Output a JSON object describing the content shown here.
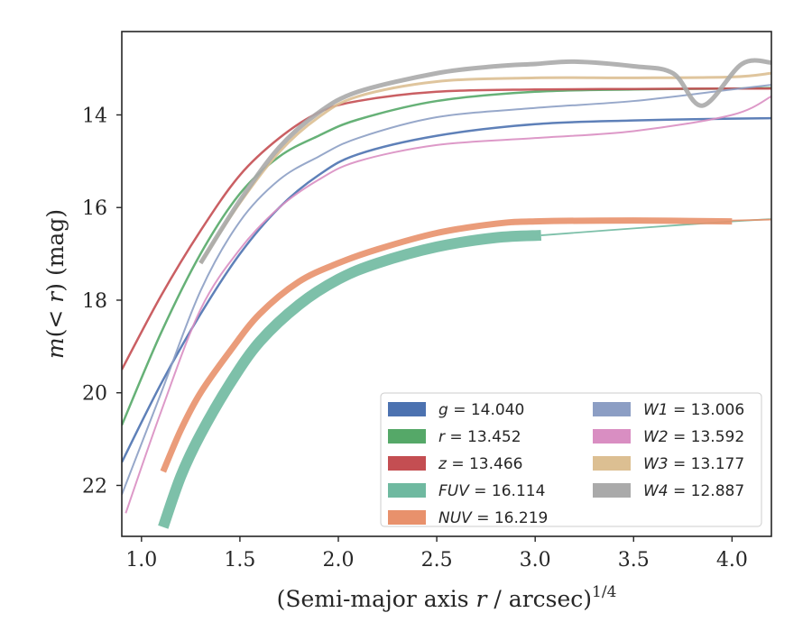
{
  "chart_data": {
    "type": "line",
    "xlabel": "(Semi-major axis r / arcsec)",
    "xlabel_italic": "r",
    "xlabel_exponent": "1/4",
    "ylabel": "m(< r) (mag)",
    "xlim": [
      0.9,
      4.2
    ],
    "ylim": [
      23.1,
      12.2
    ],
    "y_inverted": true,
    "xticks": [
      1.0,
      1.5,
      2.0,
      2.5,
      3.0,
      3.5,
      4.0
    ],
    "xtick_labels": [
      "1.0",
      "1.5",
      "2.0",
      "2.5",
      "3.0",
      "3.5",
      "4.0"
    ],
    "yticks": [
      14,
      16,
      18,
      20,
      22
    ],
    "ytick_labels": [
      "14",
      "16",
      "18",
      "20",
      "22"
    ],
    "grid": false,
    "legend_position": "lower-right",
    "legend": [
      {
        "band": "g",
        "label": "g = 14.040",
        "color": "#4c72b0"
      },
      {
        "band": "r",
        "label": "r = 13.452",
        "color": "#55a868"
      },
      {
        "band": "z",
        "label": "z = 13.466",
        "color": "#c44e52"
      },
      {
        "band": "FUV",
        "label": "FUV = 16.114",
        "color": "#6fb9a0"
      },
      {
        "band": "NUV",
        "label": "NUV = 16.219",
        "color": "#e8916c"
      },
      {
        "band": "W1",
        "label": "W1 = 13.006",
        "color": "#8c9ec4"
      },
      {
        "band": "W2",
        "label": "W2 = 13.592",
        "color": "#d98ec2"
      },
      {
        "band": "W3",
        "label": "W3 = 13.177",
        "color": "#dcbf92"
      },
      {
        "band": "W4",
        "label": "W4 = 12.887",
        "color": "#aaaaaa"
      }
    ],
    "series": [
      {
        "band": "g",
        "color": "#4c72b0",
        "lw": 2.5,
        "x": [
          0.9,
          1.1,
          1.3,
          1.5,
          1.7,
          1.9,
          2.1,
          2.5,
          3.0,
          3.5,
          4.0,
          4.2
        ],
        "y": [
          21.5,
          19.8,
          18.3,
          17.0,
          16.0,
          15.3,
          14.85,
          14.45,
          14.2,
          14.12,
          14.08,
          14.07
        ]
      },
      {
        "band": "r",
        "color": "#55a868",
        "lw": 2.5,
        "x": [
          0.9,
          1.1,
          1.3,
          1.5,
          1.7,
          1.9,
          2.1,
          2.5,
          3.0,
          3.5,
          4.0,
          4.2
        ],
        "y": [
          20.7,
          18.7,
          17.0,
          15.7,
          14.9,
          14.45,
          14.1,
          13.7,
          13.5,
          13.45,
          13.43,
          13.42
        ]
      },
      {
        "band": "z",
        "color": "#c44e52",
        "lw": 2.5,
        "x": [
          0.9,
          1.1,
          1.3,
          1.5,
          1.7,
          1.9,
          2.1,
          2.5,
          3.0,
          3.5,
          4.0,
          4.2
        ],
        "y": [
          19.5,
          17.9,
          16.5,
          15.3,
          14.5,
          13.95,
          13.7,
          13.5,
          13.45,
          13.44,
          13.43,
          13.43
        ]
      },
      {
        "band": "W1",
        "color": "#8c9ec4",
        "lw": 2.0,
        "x": [
          0.9,
          1.1,
          1.3,
          1.5,
          1.7,
          1.9,
          2.1,
          2.5,
          3.0,
          3.5,
          4.0,
          4.2
        ],
        "y": [
          22.2,
          20.0,
          17.8,
          16.3,
          15.4,
          14.9,
          14.5,
          14.05,
          13.85,
          13.7,
          13.45,
          13.35
        ]
      },
      {
        "band": "W2",
        "color": "#d98ec2",
        "lw": 2.0,
        "x": [
          0.92,
          1.1,
          1.3,
          1.5,
          1.7,
          1.9,
          2.1,
          2.5,
          3.0,
          3.5,
          4.0,
          4.2
        ],
        "y": [
          22.6,
          20.4,
          18.2,
          16.9,
          16.0,
          15.4,
          15.0,
          14.65,
          14.5,
          14.35,
          14.0,
          13.6
        ]
      },
      {
        "band": "W3",
        "color": "#dcbf92",
        "lw": 3.0,
        "x": [
          1.3,
          1.5,
          1.7,
          1.9,
          2.1,
          2.5,
          3.0,
          3.5,
          4.0,
          4.2
        ],
        "y": [
          17.2,
          15.9,
          14.8,
          14.05,
          13.6,
          13.28,
          13.2,
          13.2,
          13.18,
          13.1
        ]
      },
      {
        "band": "W4",
        "color": "#aaaaaa",
        "lw": 5.0,
        "x": [
          1.3,
          1.5,
          1.7,
          1.9,
          2.1,
          2.5,
          2.8,
          3.0,
          3.2,
          3.5,
          3.7,
          3.85,
          4.05,
          4.2
        ],
        "y": [
          17.2,
          15.85,
          14.7,
          13.95,
          13.5,
          13.1,
          12.95,
          12.9,
          12.85,
          12.95,
          13.1,
          13.8,
          12.9,
          12.87
        ]
      },
      {
        "band": "FUV",
        "color": "#6fb9a0",
        "lw": 12.0,
        "x": [
          1.11,
          1.2,
          1.3,
          1.45,
          1.6,
          1.8,
          2.0,
          2.2,
          2.5,
          2.8,
          3.03
        ],
        "y": [
          22.9,
          21.8,
          20.9,
          19.8,
          18.9,
          18.1,
          17.55,
          17.2,
          16.85,
          16.65,
          16.6
        ]
      },
      {
        "band": "FUV-ext",
        "color": "#6fb9a0",
        "lw": 1.8,
        "x": [
          3.03,
          3.5,
          4.0,
          4.2
        ],
        "y": [
          16.6,
          16.45,
          16.3,
          16.25
        ]
      },
      {
        "band": "NUV",
        "color": "#e8916c",
        "lw": 7.0,
        "x": [
          1.11,
          1.2,
          1.3,
          1.45,
          1.6,
          1.8,
          2.0,
          2.2,
          2.5,
          2.8,
          3.0,
          3.5,
          4.0
        ],
        "y": [
          21.7,
          20.8,
          20.0,
          19.1,
          18.3,
          17.6,
          17.2,
          16.9,
          16.55,
          16.35,
          16.3,
          16.28,
          16.3
        ]
      },
      {
        "band": "NUV-ext",
        "color": "#e8916c",
        "lw": 1.8,
        "x": [
          4.0,
          4.2
        ],
        "y": [
          16.28,
          16.26
        ]
      }
    ]
  }
}
